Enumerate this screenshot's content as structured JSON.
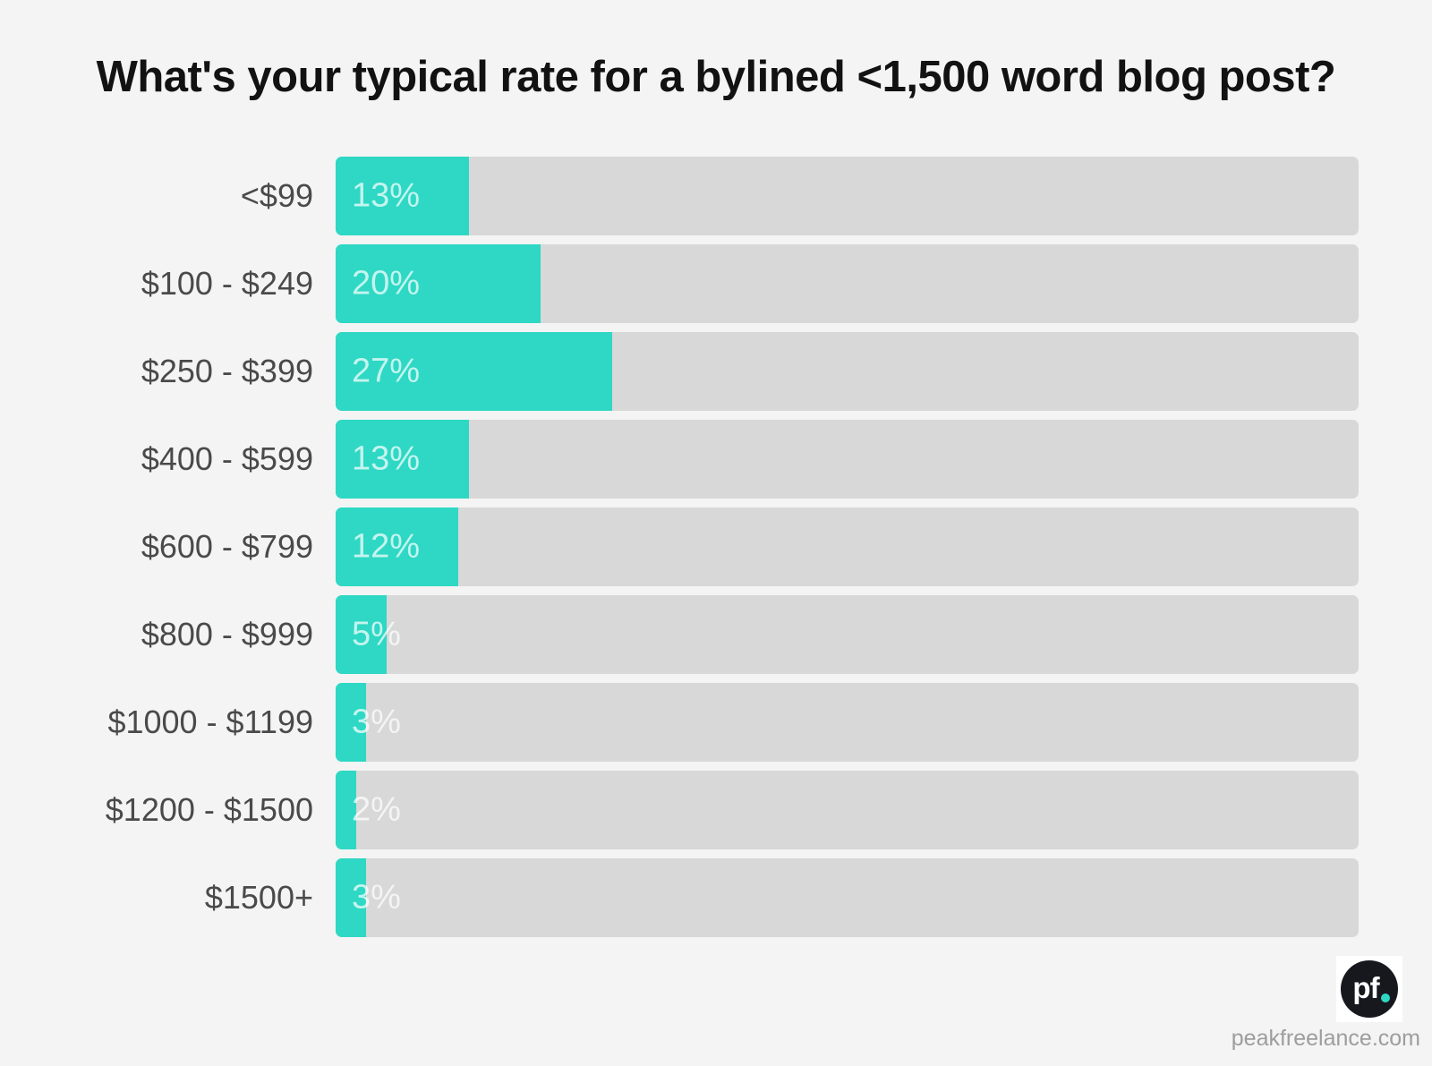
{
  "title": "What's your typical rate for a bylined <1,500 word blog post?",
  "chart_data": {
    "type": "bar",
    "orientation": "horizontal",
    "title": "What's your typical rate for a bylined <1,500 word blog post?",
    "categories": [
      "<$99",
      "$100 - $249",
      "$250 - $399",
      "$400 - $599",
      "$600 - $799",
      "$800 - $999",
      "$1000 - $1199",
      "$1200 - $1500",
      "$1500+"
    ],
    "values": [
      13,
      20,
      27,
      13,
      12,
      5,
      3,
      2,
      3
    ],
    "value_labels": [
      "13%",
      "20%",
      "27%",
      "13%",
      "12%",
      "5%",
      "3%",
      "2%",
      "3%"
    ],
    "unit": "%",
    "xlim": [
      0,
      100
    ],
    "grid": false,
    "legend": "none",
    "colors": {
      "bar": "#2ed8c4",
      "track": "#d8d8d8",
      "background": "#f4f4f4",
      "category_label": "#4a4a4a",
      "value_label": "rgba(255,255,255,0.72)",
      "title": "#121212"
    }
  },
  "branding": {
    "logo_letters": "pf",
    "logo_dot_color": "#2ed8c4",
    "logo_circle_color": "#16181d",
    "website": "peakfreelance.com"
  }
}
